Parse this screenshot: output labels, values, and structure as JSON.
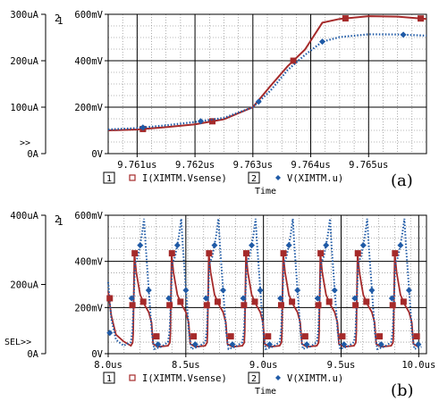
{
  "chart_data": [
    {
      "type": "line",
      "panel_label": "(a)",
      "xlabel": "Time",
      "x_ticks": [
        "9.761us",
        "9.762us",
        "9.763us",
        "9.764us",
        "9.765us"
      ],
      "x_tick_values": [
        9.761,
        9.762,
        9.763,
        9.764,
        9.765
      ],
      "xlim": [
        9.7605,
        9.766
      ],
      "left_axis": {
        "id": "1",
        "ticks": [
          "0A",
          "100uA",
          "200uA",
          "300uA"
        ],
        "tick_values": [
          0,
          100,
          200,
          300
        ],
        "ylim": [
          0,
          300
        ],
        "unit": "uA",
        "cursor_marker": ">>"
      },
      "right_axis": {
        "id": "2",
        "ticks": [
          "0V",
          "200mV",
          "400mV",
          "600mV"
        ],
        "tick_values": [
          0,
          200,
          400,
          600
        ],
        "ylim": [
          0,
          600
        ],
        "unit": "mV"
      },
      "grid": true,
      "legend": [
        {
          "axis": "1",
          "marker": "square",
          "name": "I(XIMTM.Vsense)",
          "color": "#a52a2a"
        },
        {
          "axis": "2",
          "marker": "diamond",
          "name": "V(XIMTM.u)",
          "color": "#1f5aa6"
        }
      ],
      "series": [
        {
          "name": "I(XIMTM.Vsense)",
          "axis": "1",
          "color": "#a52a2a",
          "style": "solid",
          "x": [
            9.7605,
            9.761,
            9.7615,
            9.762,
            9.7625,
            9.763,
            9.7633,
            9.7636,
            9.7639,
            9.7642,
            9.7645,
            9.765,
            9.7655,
            9.766
          ],
          "y": [
            50,
            52,
            57,
            63,
            74,
            100,
            145,
            188,
            224,
            282,
            290,
            296,
            295,
            290
          ],
          "marker_x": [
            9.7611,
            9.7623,
            9.7637,
            9.7646,
            9.7659
          ]
        },
        {
          "name": "V(XIMTM.u)",
          "axis": "2",
          "color": "#1f5aa6",
          "style": "dotted",
          "x": [
            9.7605,
            9.761,
            9.7615,
            9.762,
            9.7625,
            9.763,
            9.7633,
            9.7636,
            9.7639,
            9.7642,
            9.7645,
            9.765,
            9.7655,
            9.766
          ],
          "y": [
            104,
            110,
            122,
            136,
            154,
            200,
            270,
            360,
            425,
            482,
            502,
            514,
            513,
            508
          ],
          "marker_x": [
            9.7611,
            9.7621,
            9.7631,
            9.7642,
            9.7656
          ]
        }
      ]
    },
    {
      "type": "line",
      "panel_label": "(b)",
      "xlabel": "Time",
      "x_ticks": [
        "8.0us",
        "8.5us",
        "9.0us",
        "9.5us",
        "10.0us"
      ],
      "x_tick_values": [
        8.0,
        8.5,
        9.0,
        9.5,
        10.0
      ],
      "xlim": [
        8.0,
        10.05
      ],
      "left_axis": {
        "id": "1",
        "ticks": [
          "0A",
          "200uA",
          "400uA"
        ],
        "tick_values": [
          0,
          200,
          400
        ],
        "ylim": [
          0,
          400
        ],
        "unit": "uA",
        "cursor_marker": "SEL>>"
      },
      "right_axis": {
        "id": "2",
        "ticks": [
          "0V",
          "200mV",
          "400mV",
          "600mV"
        ],
        "tick_values": [
          0,
          200,
          400,
          600
        ],
        "ylim": [
          0,
          600
        ],
        "unit": "mV"
      },
      "grid": true,
      "legend": [
        {
          "axis": "1",
          "marker": "square",
          "name": "I(XIMTM.Vsense)",
          "color": "#a52a2a"
        },
        {
          "axis": "2",
          "marker": "diamond",
          "name": "V(XIMTM.u)",
          "color": "#1f5aa6"
        }
      ],
      "oscillation": {
        "period_us": 0.2395,
        "first_spike_us": 8.161,
        "current_uA": {
          "baseline": 20,
          "peak": 290,
          "shoulder": 120
        },
        "voltage_mV": {
          "trough": 20,
          "peak": 585,
          "knee": 390
        }
      }
    }
  ]
}
